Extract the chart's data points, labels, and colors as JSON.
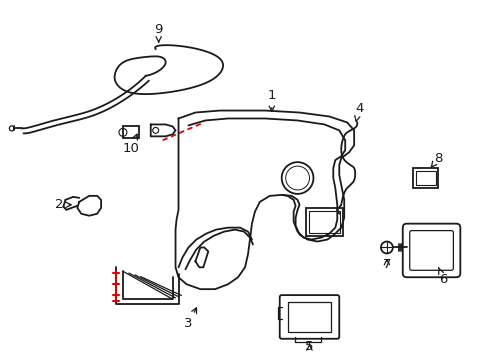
{
  "bg_color": "#ffffff",
  "line_color": "#1a1a1a",
  "red_color": "#dd0000",
  "figsize": [
    4.89,
    3.6
  ],
  "dpi": 100
}
